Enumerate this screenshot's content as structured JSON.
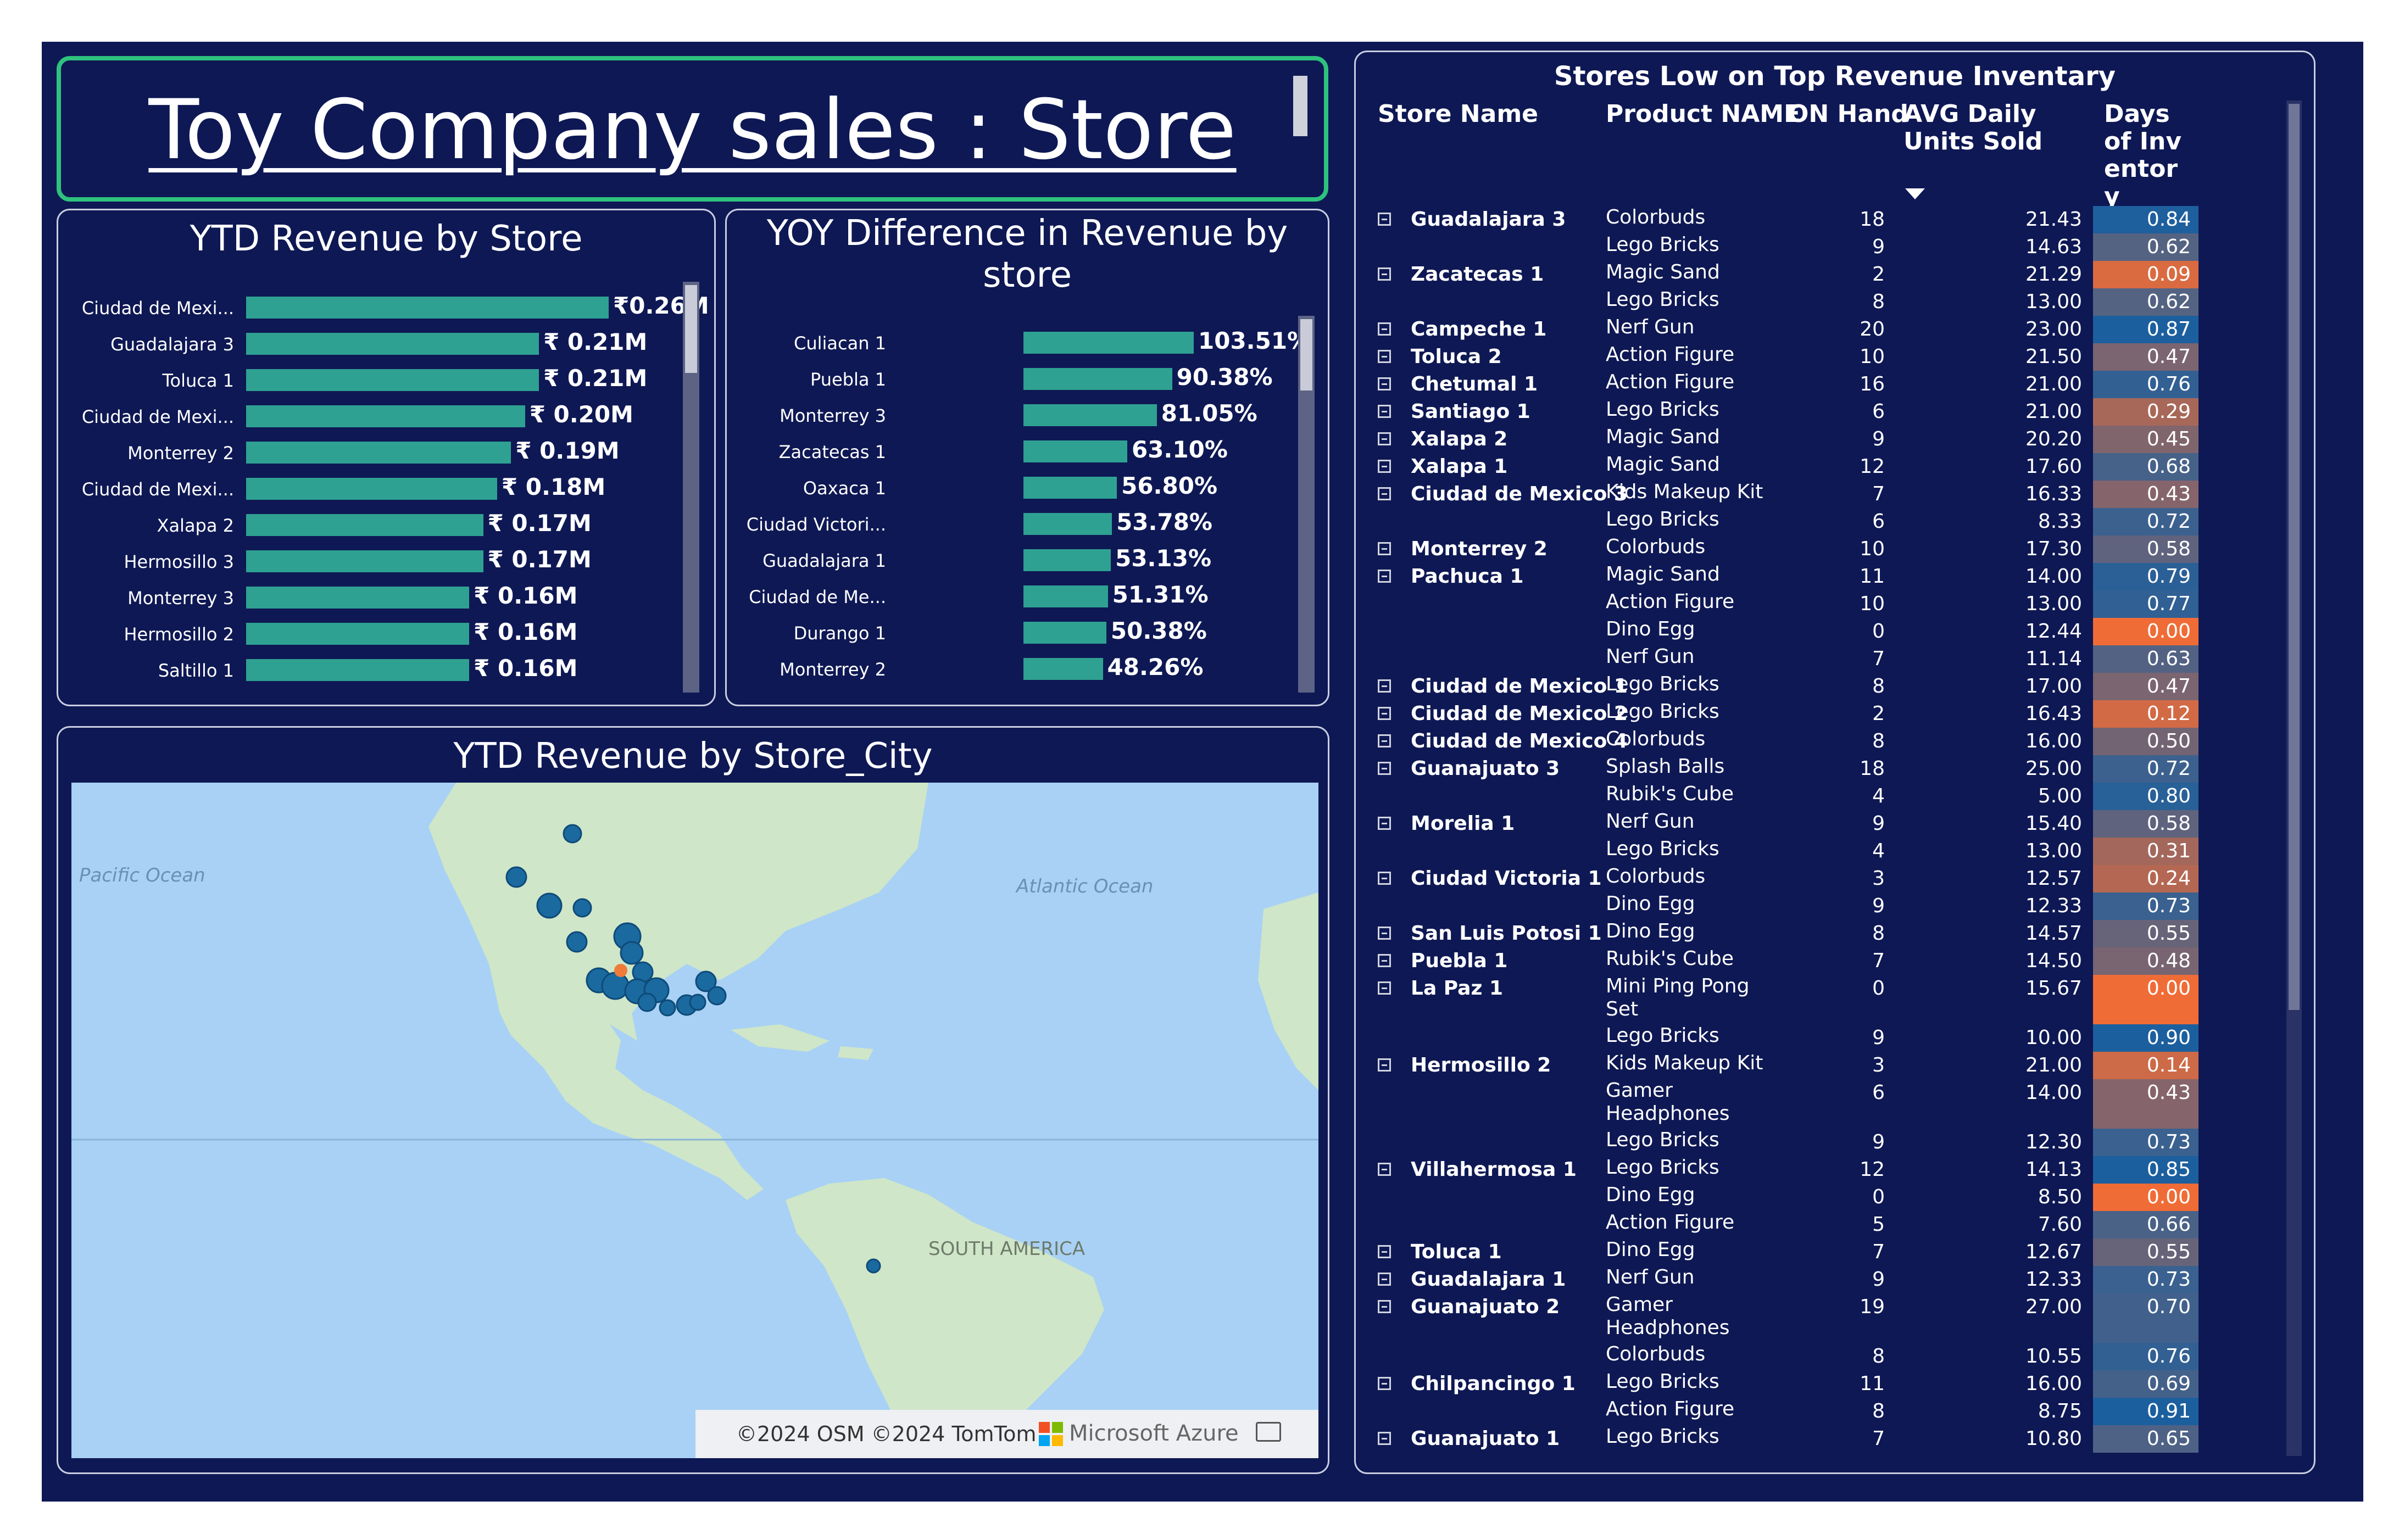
{
  "header": {
    "title": "Toy Company sales : Store "
  },
  "ytd_store": {
    "title": "YTD Revenue by Store",
    "chart_data": {
      "type": "bar",
      "categories": [
        "Ciudad de Mexi...",
        "Guadalajara 3",
        "Toluca 1",
        "Ciudad de Mexi...",
        "Monterrey 2",
        "Ciudad de Mexi...",
        "Xalapa 2",
        "Hermosillo 3",
        "Monterrey 3",
        "Hermosillo 2",
        "Saltillo 1"
      ],
      "values": [
        0.26,
        0.21,
        0.21,
        0.2,
        0.19,
        0.18,
        0.17,
        0.17,
        0.16,
        0.16,
        0.16
      ],
      "labels": [
        "₹0.26M",
        "₹ 0.21M",
        "₹ 0.21M",
        "₹ 0.20M",
        "₹ 0.19M",
        "₹ 0.18M",
        "₹ 0.17M",
        "₹ 0.17M",
        "₹ 0.16M",
        "₹ 0.16M",
        "₹ 0.16M"
      ]
    }
  },
  "yoy_store": {
    "title_line1": "YOY Difference in Revenue by",
    "title_line2": "store",
    "chart_data": {
      "type": "bar",
      "categories": [
        "Culiacan 1",
        "Puebla 1",
        "Monterrey 3",
        "Zacatecas 1",
        "Oaxaca 1",
        "Ciudad Victori...",
        "Guadalajara 1",
        "Ciudad de Me...",
        "Durango 1",
        "Monterrey 2"
      ],
      "values": [
        103.51,
        90.38,
        81.05,
        63.1,
        56.8,
        53.78,
        53.13,
        51.31,
        50.38,
        48.26
      ],
      "labels": [
        "103.51%",
        "90.38%",
        "81.05%",
        "63.10%",
        "56.80%",
        "53.78%",
        "53.13%",
        "51.31%",
        "50.38%",
        "48.26%"
      ]
    }
  },
  "map": {
    "title": "YTD Revenue by Store_City",
    "labels": {
      "pacific": "Pacific Ocean",
      "atlantic": "Atlantic Ocean",
      "south_america": "SOUTH AMERICA"
    },
    "credit": "©2024 OSM ©2024 TomTom",
    "brand": "Microsoft Azure",
    "colors": {
      "water": "#a8d1f5",
      "land": "#cfe6c8",
      "dot": "#1a6aa0",
      "highlight": "#f07a3a"
    }
  },
  "table": {
    "title": "Stores Low on Top Revenue Inventary",
    "columns": [
      "Store Name",
      "Product NAME",
      "ON Hand",
      "AVG Daily Units Sold",
      "Days of Inventory"
    ],
    "sort_icon": "sort-desc-icon",
    "rows": [
      {
        "store": "Guadalajara 3",
        "product": "Colorbuds",
        "onhand": "18",
        "avg": "21.43",
        "days": "0.84"
      },
      {
        "store": "",
        "product": "Lego Bricks",
        "onhand": "9",
        "avg": "14.63",
        "days": "0.62"
      },
      {
        "store": "Zacatecas 1",
        "product": "Magic Sand",
        "onhand": "2",
        "avg": "21.29",
        "days": "0.09"
      },
      {
        "store": "",
        "product": "Lego Bricks",
        "onhand": "8",
        "avg": "13.00",
        "days": "0.62"
      },
      {
        "store": "Campeche 1",
        "product": "Nerf Gun",
        "onhand": "20",
        "avg": "23.00",
        "days": "0.87"
      },
      {
        "store": "Toluca 2",
        "product": "Action Figure",
        "onhand": "10",
        "avg": "21.50",
        "days": "0.47"
      },
      {
        "store": "Chetumal 1",
        "product": "Action Figure",
        "onhand": "16",
        "avg": "21.00",
        "days": "0.76"
      },
      {
        "store": "Santiago 1",
        "product": "Lego Bricks",
        "onhand": "6",
        "avg": "21.00",
        "days": "0.29"
      },
      {
        "store": "Xalapa 2",
        "product": "Magic Sand",
        "onhand": "9",
        "avg": "20.20",
        "days": "0.45"
      },
      {
        "store": "Xalapa 1",
        "product": "Magic Sand",
        "onhand": "12",
        "avg": "17.60",
        "days": "0.68"
      },
      {
        "store": "Ciudad de Mexico 3",
        "product": "Kids Makeup Kit",
        "onhand": "7",
        "avg": "16.33",
        "days": "0.43"
      },
      {
        "store": "",
        "product": "Lego Bricks",
        "onhand": "6",
        "avg": "8.33",
        "days": "0.72"
      },
      {
        "store": "Monterrey 2",
        "product": "Colorbuds",
        "onhand": "10",
        "avg": "17.30",
        "days": "0.58"
      },
      {
        "store": "Pachuca 1",
        "product": "Magic Sand",
        "onhand": "11",
        "avg": "14.00",
        "days": "0.79"
      },
      {
        "store": "",
        "product": "Action Figure",
        "onhand": "10",
        "avg": "13.00",
        "days": "0.77"
      },
      {
        "store": "",
        "product": "Dino Egg",
        "onhand": "0",
        "avg": "12.44",
        "days": "0.00"
      },
      {
        "store": "",
        "product": "Nerf Gun",
        "onhand": "7",
        "avg": "11.14",
        "days": "0.63"
      },
      {
        "store": "Ciudad de Mexico 1",
        "product": "Lego Bricks",
        "onhand": "8",
        "avg": "17.00",
        "days": "0.47"
      },
      {
        "store": "Ciudad de Mexico 2",
        "product": "Lego Bricks",
        "onhand": "2",
        "avg": "16.43",
        "days": "0.12"
      },
      {
        "store": "Ciudad de Mexico 4",
        "product": "Colorbuds",
        "onhand": "8",
        "avg": "16.00",
        "days": "0.50"
      },
      {
        "store": "Guanajuato 3",
        "product": "Splash Balls",
        "onhand": "18",
        "avg": "25.00",
        "days": "0.72"
      },
      {
        "store": "",
        "product": "Rubik's Cube",
        "onhand": "4",
        "avg": "5.00",
        "days": "0.80"
      },
      {
        "store": "Morelia 1",
        "product": "Nerf Gun",
        "onhand": "9",
        "avg": "15.40",
        "days": "0.58"
      },
      {
        "store": "",
        "product": "Lego Bricks",
        "onhand": "4",
        "avg": "13.00",
        "days": "0.31"
      },
      {
        "store": "Ciudad Victoria 1",
        "product": "Colorbuds",
        "onhand": "3",
        "avg": "12.57",
        "days": "0.24"
      },
      {
        "store": "",
        "product": "Dino Egg",
        "onhand": "9",
        "avg": "12.33",
        "days": "0.73"
      },
      {
        "store": "San Luis Potosi 1",
        "product": "Dino Egg",
        "onhand": "8",
        "avg": "14.57",
        "days": "0.55"
      },
      {
        "store": "Puebla 1",
        "product": "Rubik's Cube",
        "onhand": "7",
        "avg": "14.50",
        "days": "0.48"
      },
      {
        "store": "La Paz 1",
        "product": "Mini Ping Pong Set",
        "onhand": "0",
        "avg": "15.67",
        "days": "0.00"
      },
      {
        "store": "",
        "product": "Lego Bricks",
        "onhand": "9",
        "avg": "10.00",
        "days": "0.90"
      },
      {
        "store": "Hermosillo 2",
        "product": "Kids Makeup Kit",
        "onhand": "3",
        "avg": "21.00",
        "days": "0.14"
      },
      {
        "store": "",
        "product": "Gamer Headphones",
        "onhand": "6",
        "avg": "14.00",
        "days": "0.43"
      },
      {
        "store": "",
        "product": "Lego Bricks",
        "onhand": "9",
        "avg": "12.30",
        "days": "0.73"
      },
      {
        "store": "Villahermosa 1",
        "product": "Lego Bricks",
        "onhand": "12",
        "avg": "14.13",
        "days": "0.85"
      },
      {
        "store": "",
        "product": "Dino Egg",
        "onhand": "0",
        "avg": "8.50",
        "days": "0.00"
      },
      {
        "store": "",
        "product": "Action Figure",
        "onhand": "5",
        "avg": "7.60",
        "days": "0.66"
      },
      {
        "store": "Toluca 1",
        "product": "Dino Egg",
        "onhand": "7",
        "avg": "12.67",
        "days": "0.55"
      },
      {
        "store": "Guadalajara 1",
        "product": "Nerf Gun",
        "onhand": "9",
        "avg": "12.33",
        "days": "0.73"
      },
      {
        "store": "Guanajuato 2",
        "product": "Gamer Headphones",
        "onhand": "19",
        "avg": "27.00",
        "days": "0.70"
      },
      {
        "store": "",
        "product": "Colorbuds",
        "onhand": "8",
        "avg": "10.55",
        "days": "0.76"
      },
      {
        "store": "Chilpancingo 1",
        "product": "Lego Bricks",
        "onhand": "11",
        "avg": "16.00",
        "days": "0.69"
      },
      {
        "store": "",
        "product": "Action Figure",
        "onhand": "8",
        "avg": "8.75",
        "days": "0.91"
      },
      {
        "store": "Guanajuato 1",
        "product": "Lego Bricks",
        "onhand": "7",
        "avg": "10.80",
        "days": "0.65"
      }
    ]
  },
  "colors": {
    "background": "#0e1854",
    "bar": "#2fa192",
    "heat_high": "#1c5f9e",
    "heat_low": "#f06c36",
    "frame_accent": "#2ec27e"
  }
}
